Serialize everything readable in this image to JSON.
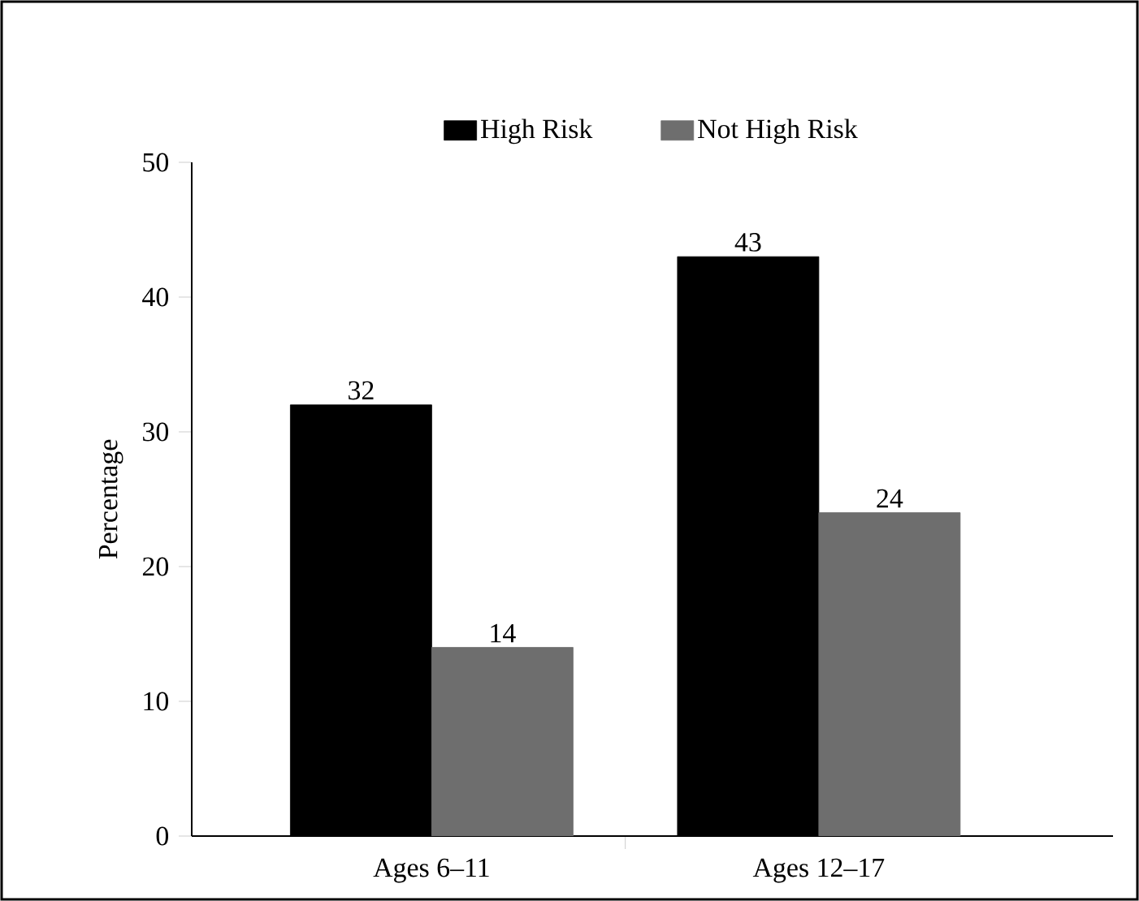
{
  "chart_data": {
    "type": "bar",
    "ylabel": "Percentage",
    "categories": [
      "Ages 6–11",
      "Ages 12–17"
    ],
    "series": [
      {
        "name": "High Risk",
        "color": "#000000",
        "values": [
          32,
          43
        ]
      },
      {
        "name": "Not High Risk",
        "color": "#6e6e6e",
        "values": [
          14,
          24
        ]
      }
    ],
    "ylim": [
      0,
      50
    ],
    "yticks": [
      0,
      10,
      20,
      30,
      40,
      50
    ],
    "grid": false,
    "legend": "top",
    "data_labels": true
  }
}
